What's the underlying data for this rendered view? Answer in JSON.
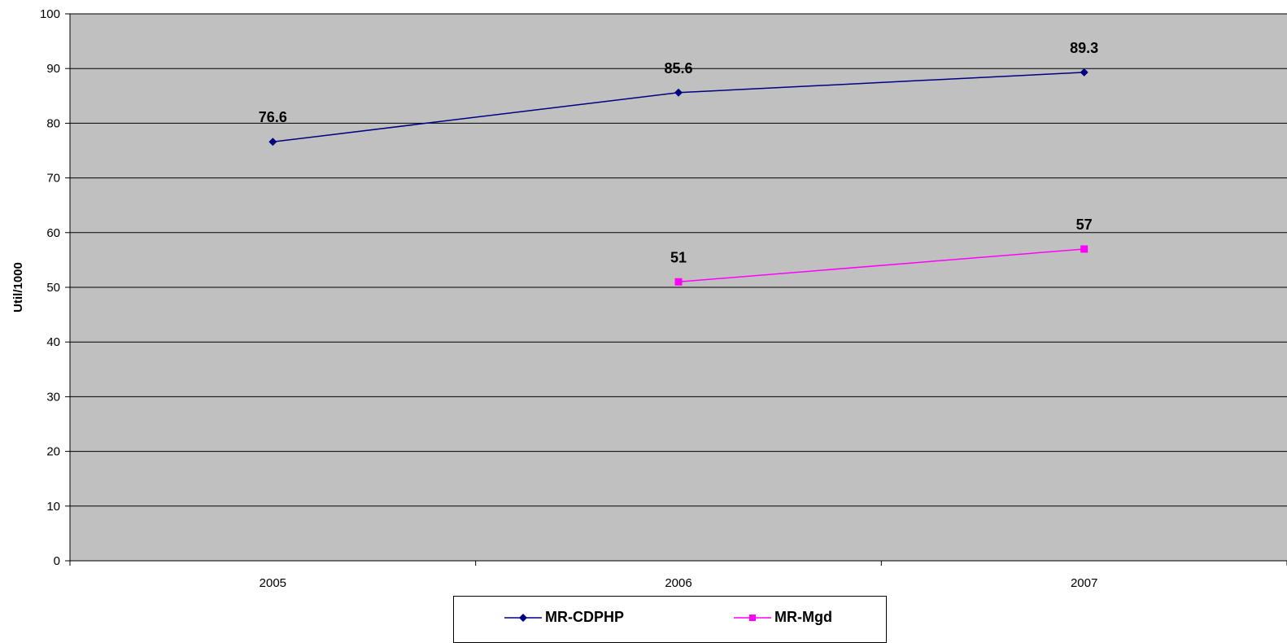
{
  "chart_data": {
    "type": "line",
    "categories": [
      "2005",
      "2006",
      "2007"
    ],
    "series": [
      {
        "name": "MR-CDPHP",
        "values": [
          76.6,
          85.6,
          89.3
        ],
        "color": "#000080",
        "marker": "diamond"
      },
      {
        "name": "MR-Mgd",
        "values": [
          null,
          51,
          57
        ],
        "color": "#FF00FF",
        "marker": "square"
      }
    ],
    "data_labels": {
      "MR-CDPHP": [
        "76.6",
        "85.6",
        "89.3"
      ],
      "MR-Mgd": [
        "",
        "51",
        "57"
      ]
    },
    "ylabel": "Util/1000",
    "ylim": [
      0,
      100
    ],
    "yticks": [
      0,
      10,
      20,
      30,
      40,
      50,
      60,
      70,
      80,
      90,
      100
    ],
    "grid": true,
    "plot_background": "#C0C0C0",
    "legend_position": "bottom"
  }
}
